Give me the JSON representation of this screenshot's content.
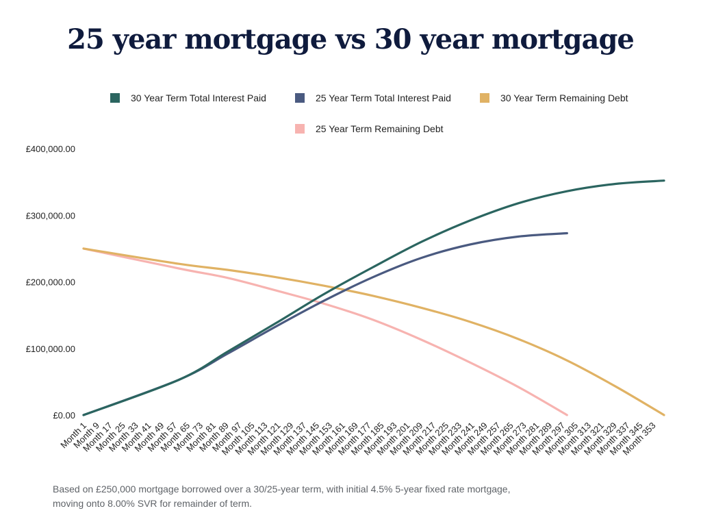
{
  "chart_data": {
    "type": "line",
    "title": "25 year mortgage vs 30 year mortgage",
    "xlabel": "",
    "ylabel": "",
    "ylim": [
      0,
      400000
    ],
    "y_ticks": [
      "£0.00",
      "£100,000.00",
      "£200,000.00",
      "£300,000.00",
      "£400,000.00"
    ],
    "y_tick_values": [
      0,
      100000,
      200000,
      300000,
      400000
    ],
    "x_range": [
      1,
      360
    ],
    "x_tick_labels": [
      "Month 1",
      "Month 9",
      "Month 17",
      "Month 25",
      "Month 33",
      "Month 41",
      "Month 49",
      "Month 57",
      "Month 65",
      "Month 73",
      "Month 81",
      "Month 89",
      "Month 97",
      "Month 105",
      "Month 113",
      "Month 121",
      "Month 129",
      "Month 137",
      "Month 145",
      "Month 153",
      "Month 161",
      "Month 169",
      "Month 177",
      "Month 185",
      "Month 193",
      "Month 201",
      "Month 209",
      "Month 217",
      "Month 225",
      "Month 233",
      "Month 241",
      "Month 249",
      "Month 257",
      "Month 265",
      "Month 273",
      "Month 281",
      "Month 289",
      "Month 297",
      "Month 305",
      "Month 313",
      "Month 321",
      "Month 329",
      "Month 337",
      "Month 345",
      "Month 353"
    ],
    "grid": false,
    "legend_position": "top",
    "series": [
      {
        "name": "30 Year Term Total Interest Paid",
        "color": "#2b6560",
        "points": [
          [
            1,
            0
          ],
          [
            60,
            53000
          ],
          [
            90,
            95000
          ],
          [
            120,
            138000
          ],
          [
            150,
            182000
          ],
          [
            180,
            222000
          ],
          [
            210,
            260000
          ],
          [
            240,
            292000
          ],
          [
            270,
            318000
          ],
          [
            300,
            336000
          ],
          [
            330,
            347000
          ],
          [
            360,
            352000
          ]
        ]
      },
      {
        "name": "25 Year Term Total Interest Paid",
        "color": "#4a5a80",
        "points": [
          [
            1,
            0
          ],
          [
            60,
            53000
          ],
          [
            90,
            92000
          ],
          [
            120,
            133000
          ],
          [
            150,
            172000
          ],
          [
            180,
            207000
          ],
          [
            210,
            236000
          ],
          [
            240,
            256000
          ],
          [
            270,
            268000
          ],
          [
            300,
            273000
          ]
        ]
      },
      {
        "name": "30 Year Term Remaining Debt",
        "color": "#e0b264",
        "points": [
          [
            1,
            250000
          ],
          [
            60,
            227000
          ],
          [
            90,
            218000
          ],
          [
            120,
            207000
          ],
          [
            150,
            194000
          ],
          [
            180,
            179000
          ],
          [
            210,
            161000
          ],
          [
            240,
            140000
          ],
          [
            270,
            114000
          ],
          [
            300,
            82000
          ],
          [
            330,
            43000
          ],
          [
            360,
            0
          ]
        ]
      },
      {
        "name": "25 Year Term Remaining Debt",
        "color": "#f7b3b0",
        "points": [
          [
            1,
            250000
          ],
          [
            60,
            220000
          ],
          [
            90,
            206000
          ],
          [
            120,
            187000
          ],
          [
            150,
            167000
          ],
          [
            180,
            143000
          ],
          [
            210,
            113000
          ],
          [
            240,
            79000
          ],
          [
            270,
            42000
          ],
          [
            300,
            0
          ]
        ]
      }
    ]
  },
  "footnote": {
    "line1": "Based on £250,000 mortgage borrowed over a 30/25-year term, with initial 4.5% 5-year fixed rate mortgage,",
    "line2": "moving onto 8.00% SVR for remainder of term."
  }
}
